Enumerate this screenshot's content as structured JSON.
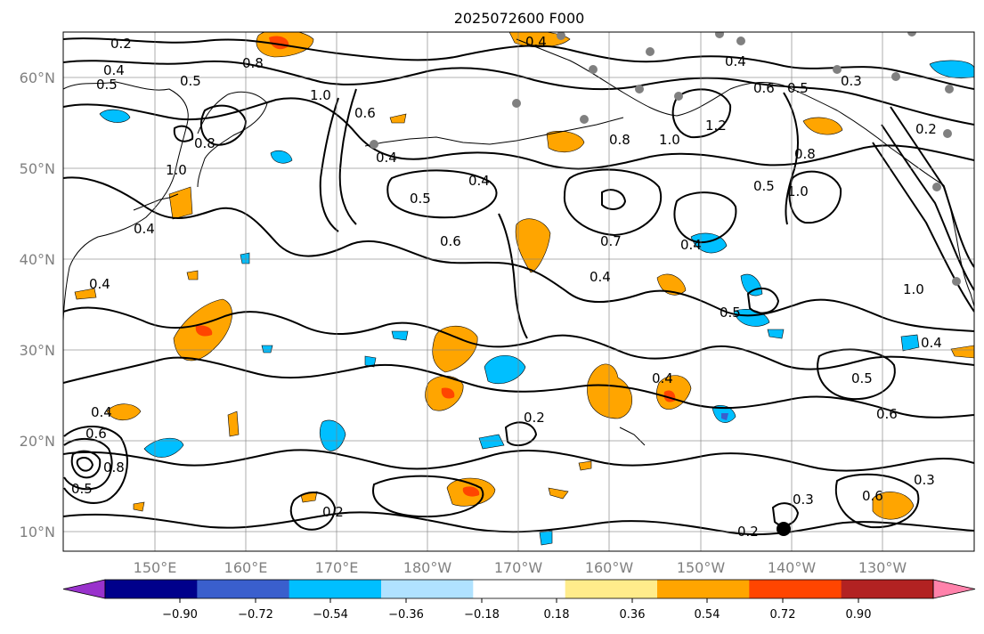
{
  "title": "2025072600 F000",
  "map": {
    "longitude_labels": [
      "150°E",
      "160°E",
      "170°E",
      "180°W",
      "170°W",
      "160°W",
      "150°W",
      "140°W",
      "130°W"
    ],
    "latitude_labels": [
      "60°N",
      "50°N",
      "40°N",
      "30°N",
      "20°N",
      "10°N"
    ],
    "contour_labels": [
      "0.2",
      "0.3",
      "0.4",
      "0.5",
      "0.6",
      "0.7",
      "0.8",
      "1.0",
      "1.2"
    ],
    "grid": true,
    "coastlines": true
  },
  "colorbar": {
    "tick_labels": [
      "−0.90",
      "−0.72",
      "−0.54",
      "−0.36",
      "−0.18",
      "0.18",
      "0.36",
      "0.54",
      "0.72",
      "0.90"
    ],
    "colors": [
      "#9932CC",
      "#00008B",
      "#3A5FCD",
      "#00BFFF",
      "#B0E2FF",
      "#FFFFFF",
      "#FFEC8B",
      "#FFA500",
      "#FF4500",
      "#B22222",
      "#FF82AB"
    ],
    "extend": "both"
  }
}
